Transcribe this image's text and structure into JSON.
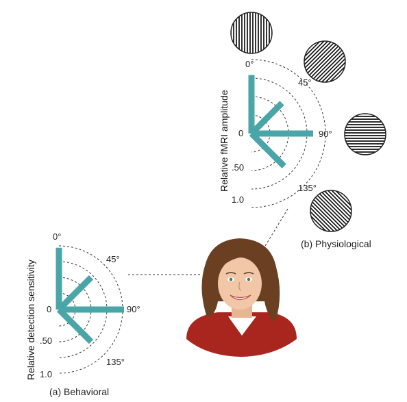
{
  "physiological": {
    "caption": "(b) Physiological",
    "axis_title": "Relative fMRI amplitude",
    "angle_labels": [
      "0°",
      "45°",
      "90°",
      "135°"
    ],
    "radial_labels": [
      "0",
      ".50",
      "1.0"
    ],
    "bars": [
      {
        "orientation_deg": 0,
        "relative_value": 0.95
      },
      {
        "orientation_deg": 45,
        "relative_value": 0.7
      },
      {
        "orientation_deg": 90,
        "relative_value": 1.0
      },
      {
        "orientation_deg": 135,
        "relative_value": 0.75
      }
    ],
    "stimuli": [
      {
        "name": "grating-0",
        "orientation_deg": 0
      },
      {
        "name": "grating-45",
        "orientation_deg": 45
      },
      {
        "name": "grating-90",
        "orientation_deg": 90
      },
      {
        "name": "grating-135",
        "orientation_deg": 135
      }
    ]
  },
  "behavioral": {
    "caption": "(a) Behavioral",
    "axis_title": "Relative detection sensitivity",
    "angle_labels": [
      "0°",
      "45°",
      "90°",
      "135°"
    ],
    "radial_labels": [
      "0",
      ".50",
      "1.0"
    ],
    "bars": [
      {
        "orientation_deg": 0,
        "relative_value": 0.95
      },
      {
        "orientation_deg": 45,
        "relative_value": 0.7
      },
      {
        "orientation_deg": 90,
        "relative_value": 1.0
      },
      {
        "orientation_deg": 135,
        "relative_value": 0.7
      }
    ]
  },
  "colors": {
    "bar": "#4aa5a8",
    "sweater": "#a8261e",
    "hair": "#6b3f22",
    "skin": "#f1c7a8"
  }
}
